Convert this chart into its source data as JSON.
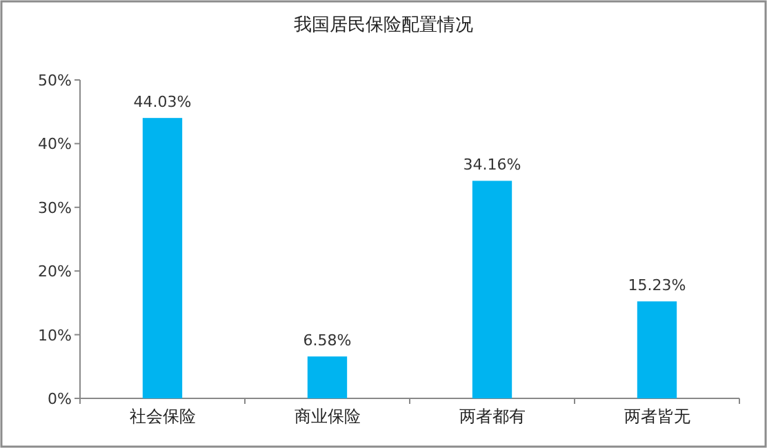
{
  "chart_data": {
    "type": "bar",
    "title": "我国居民保险配置情况",
    "categories": [
      "社会保险",
      "商业保险",
      "两者都有",
      "两者皆无"
    ],
    "values": [
      44.03,
      6.58,
      34.16,
      15.23
    ],
    "value_labels": [
      "44.03%",
      "6.58%",
      "34.16%",
      "15.23%"
    ],
    "color": "#00b4f0",
    "ylim": [
      0,
      50
    ],
    "yticks": [
      {
        "value": 0,
        "label": "0%"
      },
      {
        "value": 10,
        "label": "10%"
      },
      {
        "value": 20,
        "label": "20%"
      },
      {
        "value": 30,
        "label": "30%"
      },
      {
        "value": 40,
        "label": "40%"
      },
      {
        "value": 50,
        "label": "50%"
      }
    ],
    "grid": false
  }
}
